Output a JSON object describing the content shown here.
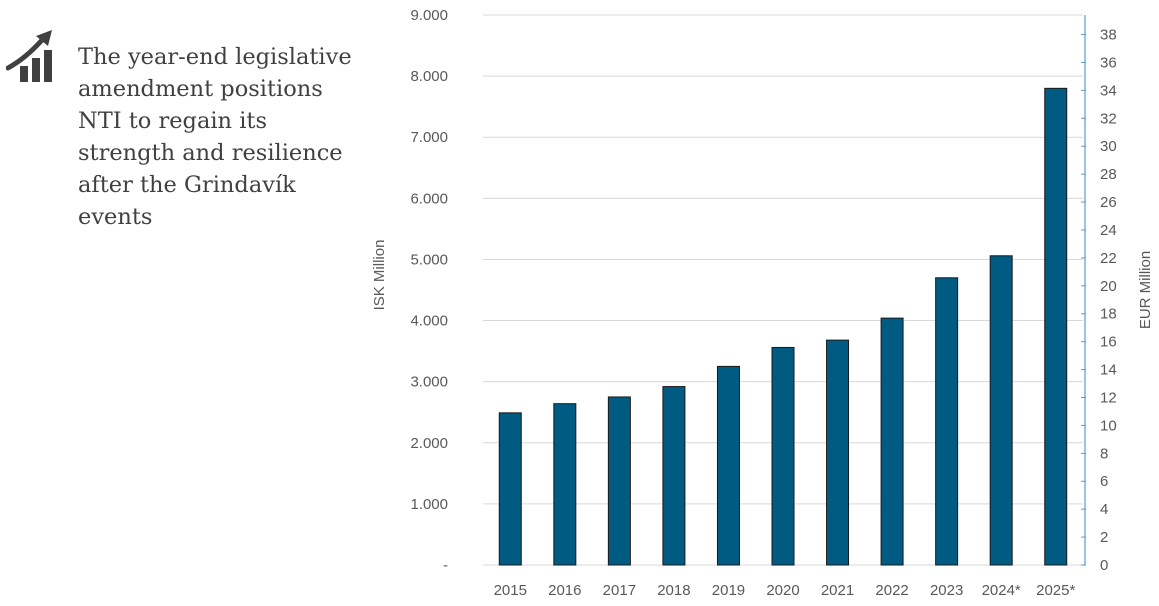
{
  "callout": {
    "text": "The year-end legislative amendment positions NTI to regain its strength and resilience after the Grindavík events",
    "icon": "growth-chart-icon"
  },
  "chart_data": {
    "type": "bar",
    "categories": [
      "2015",
      "2016",
      "2017",
      "2018",
      "2019",
      "2020",
      "2021",
      "2022",
      "2023",
      "2024*",
      "2025*"
    ],
    "series": [
      {
        "values": [
          2490,
          2640,
          2750,
          2920,
          3250,
          3560,
          3680,
          4040,
          4700,
          5060,
          7800
        ]
      }
    ],
    "ylabel": "ISK Million",
    "y2label": "EUR Million",
    "ylim": [
      0,
      9000
    ],
    "y_ticks": [
      "-",
      "1.000",
      "2.000",
      "3.000",
      "4.000",
      "5.000",
      "6.000",
      "7.000",
      "8.000",
      "9.000"
    ],
    "y2lim": [
      0,
      39.4
    ],
    "y2_ticks": [
      "0",
      "2",
      "4",
      "6",
      "8",
      "10",
      "12",
      "14",
      "16",
      "18",
      "20",
      "22",
      "24",
      "26",
      "28",
      "30",
      "32",
      "34",
      "36",
      "38"
    ],
    "grid": true,
    "bar_color": "#005b82",
    "grid_color": "#d9d9d9",
    "y2_axis_color": "#5b9bd5"
  }
}
